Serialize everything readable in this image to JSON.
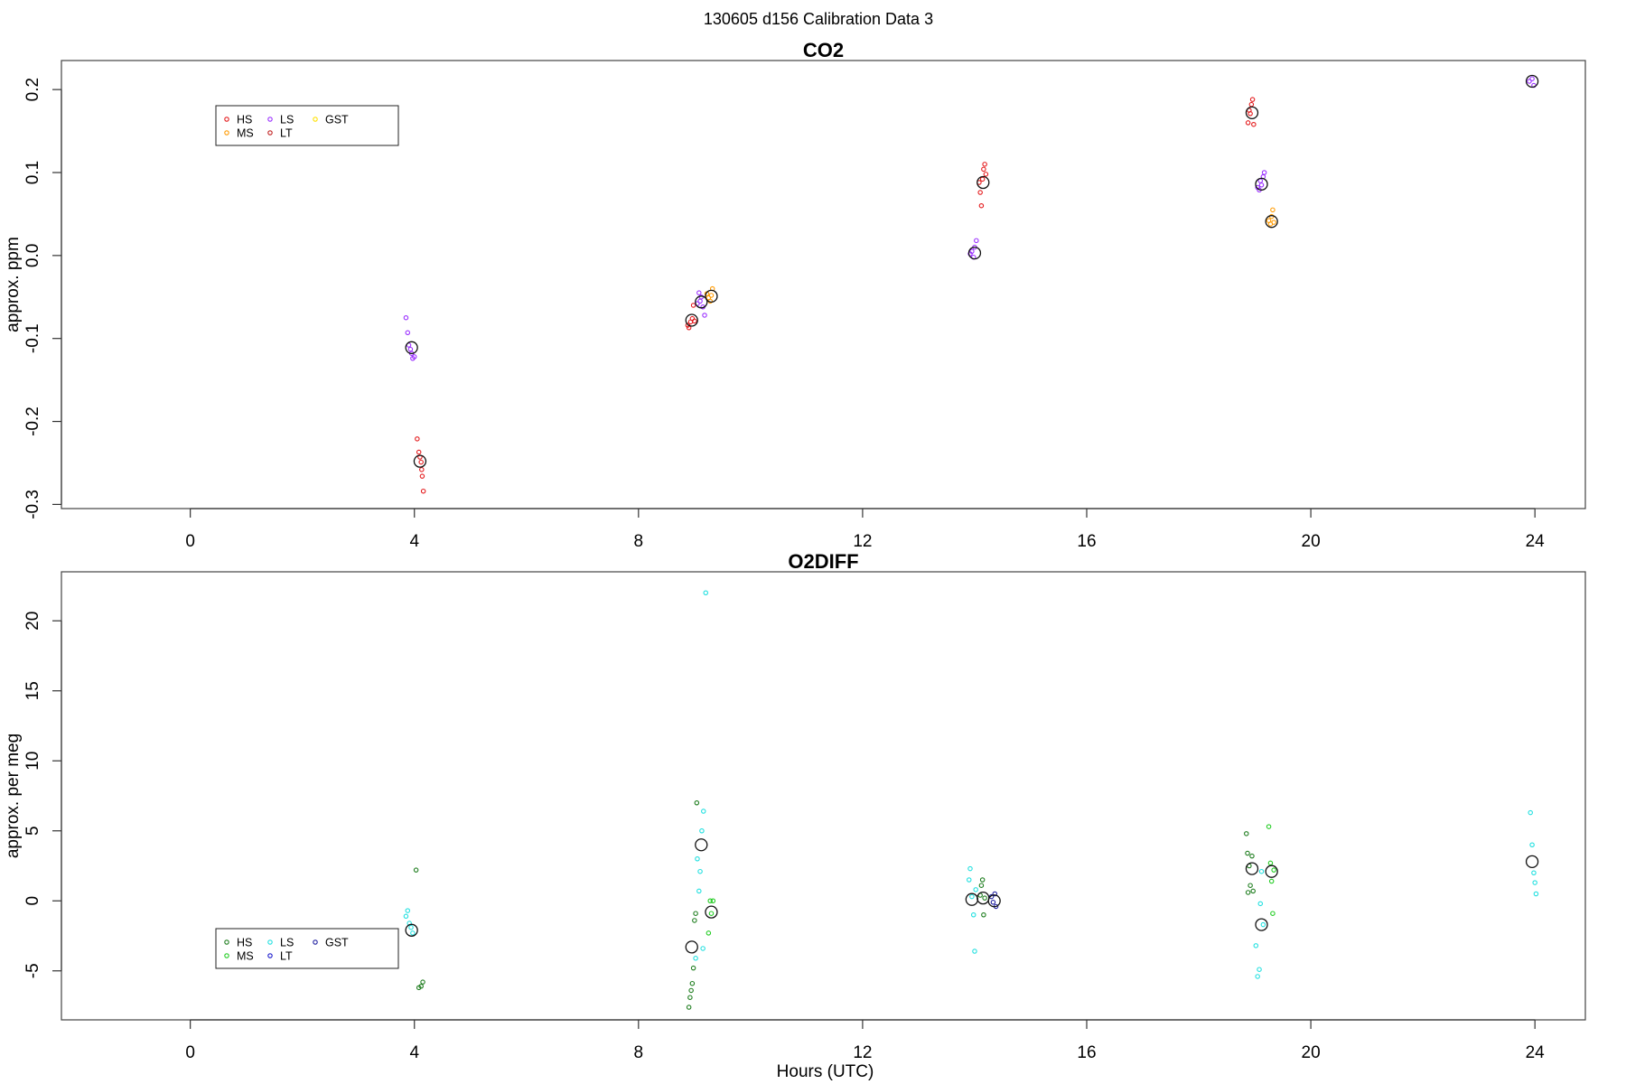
{
  "figure": {
    "title": "130605   d156   Calibration Data 3"
  },
  "colors": {
    "HS": "#e41a1c",
    "MS": "#ff9a00",
    "LS": "#9b30ff",
    "LT": "#c01f1f",
    "GST": "#ffe100",
    "o2_HS": "#1e7d1e",
    "o2_MS": "#22cc22",
    "o2_LS": "#22e0e0",
    "o2_LT": "#1a1acc",
    "o2_GST": "#2020a0",
    "mean": "#111111"
  },
  "chart_data": [
    {
      "id": "co2",
      "type": "scatter",
      "title": "CO2",
      "xlabel": "",
      "ylabel": "approx. ppm",
      "xlim": [
        -2.3,
        24.9
      ],
      "ylim": [
        -0.305,
        0.235
      ],
      "xticks": [
        0,
        4,
        8,
        12,
        16,
        20,
        24
      ],
      "xtick_labels": [
        "0",
        "4",
        "8",
        "12",
        "16",
        "20",
        "24"
      ],
      "yticks": [
        -0.3,
        -0.2,
        -0.1,
        0.0,
        0.1,
        0.2
      ],
      "ytick_labels": [
        "-0.3",
        "-0.2",
        "-0.1",
        "0.0",
        "0.1",
        "0.2"
      ],
      "legend": {
        "position": "top-left",
        "entries": [
          {
            "label": "HS",
            "color_key": "HS"
          },
          {
            "label": "MS",
            "color_key": "MS"
          },
          {
            "label": "LS",
            "color_key": "LS"
          },
          {
            "label": "LT",
            "color_key": "LT"
          },
          {
            "label": "GST",
            "color_key": "GST"
          }
        ]
      },
      "series": [
        {
          "name": "HS",
          "color_key": "HS",
          "points": [
            [
              4.05,
              -0.221
            ],
            [
              4.08,
              -0.237
            ],
            [
              4.1,
              -0.243
            ],
            [
              4.12,
              -0.249
            ],
            [
              4.13,
              -0.258
            ],
            [
              4.14,
              -0.266
            ],
            [
              4.16,
              -0.284
            ],
            [
              8.88,
              -0.084
            ],
            [
              8.9,
              -0.087
            ],
            [
              8.93,
              -0.08
            ],
            [
              8.96,
              -0.076
            ],
            [
              8.98,
              -0.06
            ],
            [
              9.0,
              -0.079
            ],
            [
              14.08,
              0.088
            ],
            [
              14.1,
              0.076
            ],
            [
              14.12,
              0.06
            ],
            [
              14.14,
              0.092
            ],
            [
              14.16,
              0.104
            ],
            [
              14.18,
              0.11
            ],
            [
              14.2,
              0.098
            ],
            [
              18.88,
              0.16
            ],
            [
              18.9,
              0.175
            ],
            [
              18.92,
              0.171
            ],
            [
              18.94,
              0.182
            ],
            [
              18.96,
              0.188
            ],
            [
              18.98,
              0.158
            ]
          ]
        },
        {
          "name": "MS",
          "color_key": "MS",
          "points": [
            [
              9.22,
              -0.046
            ],
            [
              9.25,
              -0.051
            ],
            [
              9.28,
              -0.055
            ],
            [
              9.3,
              -0.048
            ],
            [
              9.32,
              -0.04
            ],
            [
              19.25,
              0.042
            ],
            [
              19.28,
              0.038
            ],
            [
              19.3,
              0.047
            ],
            [
              19.32,
              0.055
            ],
            [
              19.34,
              0.04
            ]
          ]
        },
        {
          "name": "LS",
          "color_key": "LS",
          "points": [
            [
              3.85,
              -0.075
            ],
            [
              3.88,
              -0.093
            ],
            [
              3.9,
              -0.108
            ],
            [
              3.93,
              -0.113
            ],
            [
              3.95,
              -0.118
            ],
            [
              3.97,
              -0.124
            ],
            [
              4.0,
              -0.122
            ],
            [
              9.05,
              -0.058
            ],
            [
              9.08,
              -0.045
            ],
            [
              9.1,
              -0.055
            ],
            [
              9.12,
              -0.05
            ],
            [
              9.15,
              -0.062
            ],
            [
              9.18,
              -0.072
            ],
            [
              13.92,
              0.002
            ],
            [
              13.95,
              0.005
            ],
            [
              13.98,
              -0.002
            ],
            [
              14.0,
              0.01
            ],
            [
              14.03,
              0.018
            ],
            [
              19.05,
              0.082
            ],
            [
              19.08,
              0.079
            ],
            [
              19.1,
              0.09
            ],
            [
              19.12,
              0.085
            ],
            [
              19.15,
              0.095
            ],
            [
              19.17,
              0.1
            ],
            [
              23.9,
              0.21
            ],
            [
              23.95,
              0.213
            ],
            [
              23.98,
              0.205
            ]
          ]
        }
      ],
      "means": [
        {
          "x": 3.95,
          "y": -0.111
        },
        {
          "x": 4.1,
          "y": -0.248
        },
        {
          "x": 8.95,
          "y": -0.078
        },
        {
          "x": 9.12,
          "y": -0.056
        },
        {
          "x": 9.3,
          "y": -0.049
        },
        {
          "x": 14.0,
          "y": 0.003
        },
        {
          "x": 14.15,
          "y": 0.088
        },
        {
          "x": 18.95,
          "y": 0.172
        },
        {
          "x": 19.12,
          "y": 0.086
        },
        {
          "x": 19.3,
          "y": 0.041
        },
        {
          "x": 23.95,
          "y": 0.21
        }
      ]
    },
    {
      "id": "o2diff",
      "type": "scatter",
      "title": "O2DIFF",
      "xlabel": "Hours (UTC)",
      "ylabel": "approx. per meg",
      "xlim": [
        -2.3,
        24.9
      ],
      "ylim": [
        -8.5,
        23.5
      ],
      "xticks": [
        0,
        4,
        8,
        12,
        16,
        20,
        24
      ],
      "xtick_labels": [
        "0",
        "4",
        "8",
        "12",
        "16",
        "20",
        "24"
      ],
      "yticks": [
        -5,
        0,
        5,
        10,
        15,
        20
      ],
      "ytick_labels": [
        "-5",
        "0",
        "5",
        "10",
        "15",
        "20"
      ],
      "legend": {
        "position": "bottom-left",
        "entries": [
          {
            "label": "HS",
            "color_key": "o2_HS"
          },
          {
            "label": "MS",
            "color_key": "o2_MS"
          },
          {
            "label": "LS",
            "color_key": "o2_LS"
          },
          {
            "label": "LT",
            "color_key": "o2_LT"
          },
          {
            "label": "GST",
            "color_key": "o2_GST"
          }
        ]
      },
      "series": [
        {
          "name": "HS",
          "color_key": "o2_HS",
          "points": [
            [
              4.03,
              2.2
            ],
            [
              4.08,
              -6.2
            ],
            [
              4.12,
              -6.1
            ],
            [
              4.15,
              -5.8
            ],
            [
              8.9,
              -7.6
            ],
            [
              8.92,
              -6.9
            ],
            [
              8.94,
              -6.4
            ],
            [
              8.96,
              -5.9
            ],
            [
              8.98,
              -4.8
            ],
            [
              9.0,
              -1.4
            ],
            [
              9.02,
              -0.9
            ],
            [
              9.04,
              7.0
            ],
            [
              14.1,
              0.4
            ],
            [
              14.12,
              1.1
            ],
            [
              14.14,
              1.5
            ],
            [
              14.16,
              -1.0
            ],
            [
              14.18,
              0.2
            ],
            [
              18.85,
              4.8
            ],
            [
              18.87,
              3.4
            ],
            [
              18.9,
              2.5
            ],
            [
              18.92,
              1.1
            ],
            [
              18.88,
              0.6
            ],
            [
              18.95,
              3.2
            ],
            [
              18.97,
              0.7
            ]
          ]
        },
        {
          "name": "MS",
          "color_key": "o2_MS",
          "points": [
            [
              9.25,
              -2.3
            ],
            [
              9.28,
              0.0
            ],
            [
              9.3,
              -0.9
            ],
            [
              9.33,
              0.0
            ],
            [
              19.25,
              5.3
            ],
            [
              19.28,
              2.7
            ],
            [
              19.3,
              1.4
            ],
            [
              19.32,
              -0.9
            ],
            [
              19.34,
              2.2
            ]
          ]
        },
        {
          "name": "LS",
          "color_key": "o2_LS",
          "points": [
            [
              3.85,
              -1.1
            ],
            [
              3.88,
              -0.7
            ],
            [
              3.91,
              -1.6
            ],
            [
              3.94,
              -1.9
            ],
            [
              3.97,
              -2.3
            ],
            [
              9.02,
              -4.1
            ],
            [
              9.05,
              3.0
            ],
            [
              9.08,
              0.7
            ],
            [
              9.1,
              2.1
            ],
            [
              9.13,
              5.0
            ],
            [
              9.16,
              6.4
            ],
            [
              9.2,
              22.0
            ],
            [
              9.15,
              -3.4
            ],
            [
              13.9,
              1.5
            ],
            [
              13.92,
              2.3
            ],
            [
              13.95,
              0.3
            ],
            [
              13.98,
              -1.0
            ],
            [
              14.0,
              -3.6
            ],
            [
              14.02,
              0.8
            ],
            [
              19.02,
              -3.2
            ],
            [
              19.05,
              -5.4
            ],
            [
              19.08,
              -4.9
            ],
            [
              19.1,
              -0.2
            ],
            [
              19.12,
              2.1
            ],
            [
              19.15,
              -1.7
            ],
            [
              23.92,
              6.3
            ],
            [
              23.95,
              4.0
            ],
            [
              23.98,
              2.0
            ],
            [
              24.0,
              1.3
            ],
            [
              24.02,
              0.5
            ]
          ]
        },
        {
          "name": "GST",
          "color_key": "o2_GST",
          "points": [
            [
              14.3,
              0.3
            ],
            [
              14.33,
              -0.1
            ],
            [
              14.36,
              0.5
            ],
            [
              14.38,
              -0.4
            ]
          ]
        }
      ],
      "means": [
        {
          "x": 3.95,
          "y": -2.1
        },
        {
          "x": 8.95,
          "y": -3.3
        },
        {
          "x": 9.12,
          "y": 4.0
        },
        {
          "x": 9.3,
          "y": -0.8
        },
        {
          "x": 13.95,
          "y": 0.1
        },
        {
          "x": 14.15,
          "y": 0.2
        },
        {
          "x": 14.35,
          "y": 0.0
        },
        {
          "x": 18.95,
          "y": 2.3
        },
        {
          "x": 19.12,
          "y": -1.7
        },
        {
          "x": 19.3,
          "y": 2.1
        },
        {
          "x": 23.95,
          "y": 2.8
        }
      ]
    }
  ]
}
